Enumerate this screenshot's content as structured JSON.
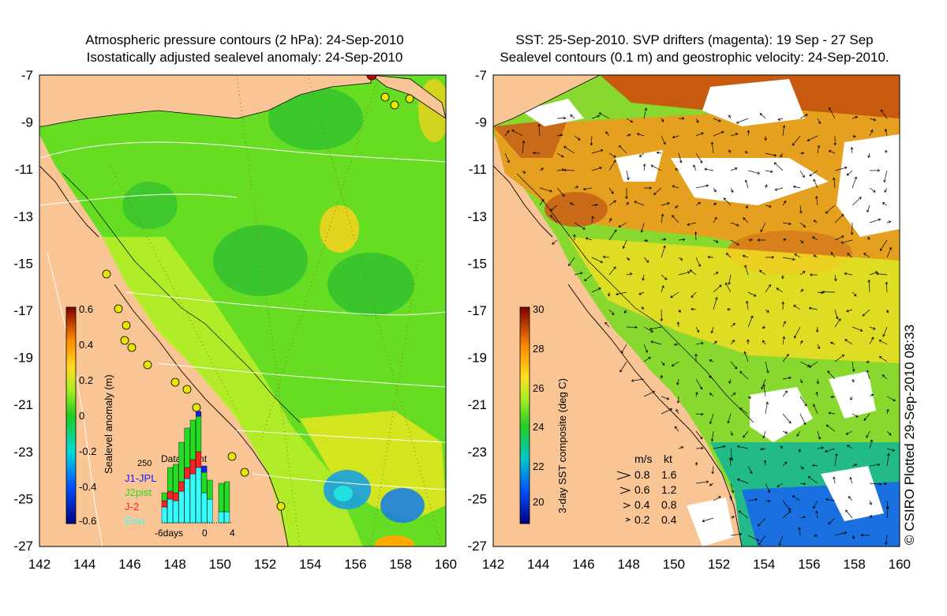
{
  "left_panel": {
    "title_line1": "Atmospheric pressure contours (2 hPa): 24-Sep-2010",
    "title_line2": "Isostatically adjusted sealevel anomaly: 24-Sep-2010",
    "y_ticks": [
      "-7",
      "-9",
      "-11",
      "-13",
      "-15",
      "-17",
      "-19",
      "-21",
      "-23",
      "-25",
      "-27"
    ],
    "x_ticks": [
      "142",
      "144",
      "146",
      "148",
      "150",
      "152",
      "154",
      "156",
      "158",
      "160"
    ],
    "colorbar": {
      "label": "Sealevel anomaly (m)",
      "ticks": [
        "0.6",
        "0.4",
        "0.2",
        "0",
        "-0.2",
        "-0.4",
        "-0.6"
      ]
    },
    "inset": {
      "title": "Data count",
      "max_label": "250",
      "xlabel_left": "-6days",
      "xlabel_mid": "0",
      "xlabel_right": "4",
      "legend": [
        {
          "name": "J1-JPL",
          "color": "#1a1aff"
        },
        {
          "name": "J2pist",
          "color": "#22dd22"
        },
        {
          "name": "J-2",
          "color": "#ff2222"
        },
        {
          "name": "Envi",
          "color": "#33ffff"
        }
      ]
    }
  },
  "right_panel": {
    "title_line1": "SST: 25-Sep-2010. SVP drifters (magenta): 19 Sep - 27 Sep",
    "title_line2": "Sealevel contours (0.1 m) and geostrophic velocity: 24-Sep-2010.",
    "y_ticks": [
      "-7",
      "-9",
      "-11",
      "-13",
      "-15",
      "-17",
      "-19",
      "-21",
      "-23",
      "-25",
      "-27"
    ],
    "x_ticks": [
      "142",
      "144",
      "146",
      "148",
      "150",
      "152",
      "154",
      "156",
      "158",
      "160"
    ],
    "colorbar": {
      "label": "3-day SST composite (deg C)",
      "ticks": [
        "30",
        "28",
        "26",
        "24",
        "22",
        "20"
      ]
    },
    "velocity_legend": {
      "header_ms": "m/s",
      "header_kt": "kt",
      "rows": [
        {
          "ms": "0.8",
          "kt": "1.6"
        },
        {
          "ms": "0.6",
          "kt": "1.2"
        },
        {
          "ms": "0.4",
          "kt": "0.8"
        },
        {
          "ms": "0.2",
          "kt": "0.4"
        }
      ]
    },
    "side_text": "© CSIRO Plotted 29-Sep-2010 08:33"
  },
  "colors": {
    "land": "#f9c594",
    "ocean_green": "#55dd22",
    "white_cloud": "#ffffff",
    "sst_warm": "#c85a10"
  }
}
